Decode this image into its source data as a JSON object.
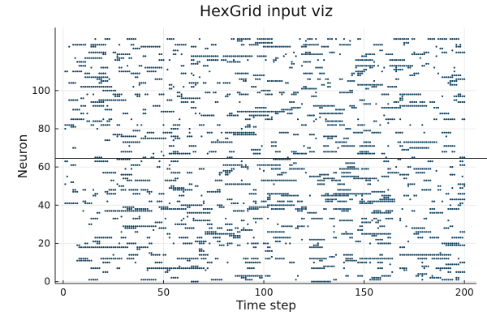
{
  "chart_data": {
    "type": "scatter",
    "title": "HexGrid input viz",
    "xlabel": "Time step",
    "ylabel": "Neuron",
    "xlim": [
      -4,
      206
    ],
    "ylim": [
      -1,
      133
    ],
    "xticks": [
      0,
      50,
      100,
      150,
      200
    ],
    "yticks": [
      0,
      20,
      40,
      60,
      80,
      100
    ],
    "grid": true,
    "legend": "none",
    "hline": 64.5,
    "series": [
      {
        "marker_color": "#0b3d5c",
        "steps": 200,
        "neurons": 128,
        "neuron_rates": [
          0.02,
          0.15,
          0.08,
          0.12,
          0.04,
          0.03,
          0.1,
          0.25,
          0.06,
          0.05,
          0.3,
          0.09,
          0.45,
          0.04,
          0.2,
          0.05,
          0.1,
          0.08,
          0.14,
          0.06,
          0.35,
          0.07,
          0.1,
          0.25,
          0.04,
          0.08,
          0.22,
          0.05,
          0.3,
          0.12,
          0.06,
          0.1,
          0.18,
          0.35,
          0.07,
          0.05,
          0.1,
          0.2,
          0.3,
          0.06,
          0.15,
          0.08,
          0.25,
          0.1,
          0.05,
          0.12,
          0.2,
          0.07,
          0.3,
          0.06,
          0.1,
          0.15,
          0.05,
          0.25,
          0.08,
          0.12,
          0.06,
          0.2,
          0.1,
          0.35,
          0.05,
          0.15,
          0.08,
          0.1,
          0.03,
          0.12,
          0.05,
          0.1,
          0.2,
          0.06,
          0.08,
          0.25,
          0.04,
          0.15,
          0.1,
          0.05,
          0.2,
          0.08,
          0.3,
          0.06,
          0.12,
          0.1,
          0.35,
          0.05,
          0.15,
          0.25,
          0.07,
          0.1,
          0.3,
          0.05,
          0.12,
          0.08,
          0.2,
          0.06,
          0.1,
          0.15,
          0.05,
          0.08,
          0.25,
          0.1,
          0.06,
          0.12,
          0.2,
          0.05,
          0.15,
          0.08,
          0.3,
          0.1,
          0.06,
          0.2,
          0.12,
          0.05,
          0.25,
          0.08,
          0.15,
          0.1,
          0.35,
          0.06,
          0.12,
          0.2,
          0.08,
          0.1,
          0.05,
          0.15,
          0.3,
          0.1,
          0.06,
          0.5
        ]
      }
    ]
  }
}
